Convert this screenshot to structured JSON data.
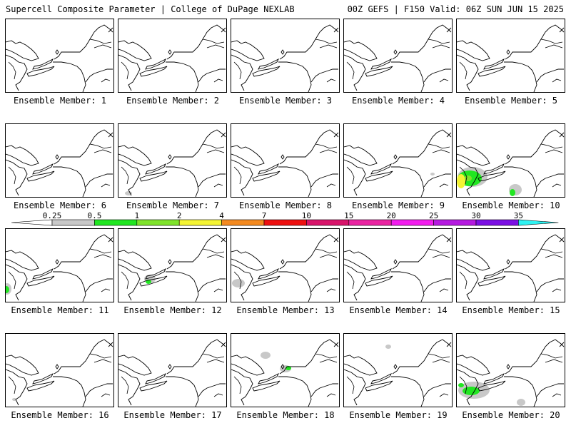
{
  "header": {
    "left": "Supercell Composite Parameter | College of DuPage NEXLAB",
    "right": "00Z GEFS | F150 Valid: 06Z SUN JUN 15 2025"
  },
  "member_label_prefix": "Ensemble Member:",
  "members": [
    {
      "label": "Ensemble Member: 1",
      "blobs": []
    },
    {
      "label": "Ensemble Member: 2",
      "blobs": []
    },
    {
      "label": "Ensemble Member: 3",
      "blobs": []
    },
    {
      "label": "Ensemble Member: 4",
      "blobs": []
    },
    {
      "label": "Ensemble Member: 5",
      "blobs": []
    },
    {
      "label": "Ensemble Member: 6",
      "blobs": []
    },
    {
      "label": "Ensemble Member: 7",
      "blobs": [
        {
          "cls": "0.25",
          "x": 14,
          "y": 97,
          "rx": 5,
          "ry": 3
        }
      ]
    },
    {
      "label": "Ensemble Member: 8",
      "blobs": []
    },
    {
      "label": "Ensemble Member: 9",
      "blobs": [
        {
          "cls": "0.25",
          "x": 124,
          "y": 70,
          "rx": 3,
          "ry": 2
        }
      ]
    },
    {
      "label": "Ensemble Member: 10",
      "blobs": [
        {
          "cls": "0.25",
          "x": 22,
          "y": 74,
          "rx": 21,
          "ry": 14
        },
        {
          "cls": "0.5",
          "x": 18,
          "y": 76,
          "rx": 17,
          "ry": 11
        },
        {
          "cls": "2",
          "x": 6,
          "y": 80,
          "rx": 6,
          "ry": 10
        },
        {
          "cls": "1",
          "x": 16,
          "y": 76,
          "rx": 5,
          "ry": 4
        },
        {
          "cls": "0.25",
          "x": 82,
          "y": 92,
          "rx": 9,
          "ry": 8
        },
        {
          "cls": "0.5",
          "x": 78,
          "y": 96,
          "rx": 4,
          "ry": 5
        }
      ]
    },
    {
      "label": "Ensemble Member: 11",
      "blobs": [
        {
          "cls": "0.25",
          "x": 2,
          "y": 84,
          "rx": 6,
          "ry": 8
        },
        {
          "cls": "0.5",
          "x": 1,
          "y": 85,
          "rx": 4,
          "ry": 5
        }
      ]
    },
    {
      "label": "Ensemble Member: 12",
      "blobs": [
        {
          "cls": "0.25",
          "x": 44,
          "y": 70,
          "rx": 8,
          "ry": 6
        },
        {
          "cls": "0.5",
          "x": 42,
          "y": 74,
          "rx": 4,
          "ry": 3
        }
      ]
    },
    {
      "label": "Ensemble Member: 13",
      "blobs": [
        {
          "cls": "0.25",
          "x": 10,
          "y": 76,
          "rx": 9,
          "ry": 6
        }
      ]
    },
    {
      "label": "Ensemble Member: 14",
      "blobs": []
    },
    {
      "label": "Ensemble Member: 15",
      "blobs": []
    },
    {
      "label": "Ensemble Member: 16",
      "blobs": [
        {
          "cls": "0.25",
          "x": 12,
          "y": 92,
          "rx": 3,
          "ry": 2
        }
      ]
    },
    {
      "label": "Ensemble Member: 17",
      "blobs": []
    },
    {
      "label": "Ensemble Member: 18",
      "blobs": [
        {
          "cls": "0.25",
          "x": 48,
          "y": 30,
          "rx": 7,
          "ry": 5
        },
        {
          "cls": "0.25",
          "x": 76,
          "y": 49,
          "rx": 8,
          "ry": 5
        },
        {
          "cls": "0.5",
          "x": 80,
          "y": 48,
          "rx": 4,
          "ry": 3
        }
      ]
    },
    {
      "label": "Ensemble Member: 19",
      "blobs": [
        {
          "cls": "0.25",
          "x": 62,
          "y": 18,
          "rx": 4,
          "ry": 3
        }
      ]
    },
    {
      "label": "Ensemble Member: 20",
      "blobs": [
        {
          "cls": "0.25",
          "x": 24,
          "y": 79,
          "rx": 22,
          "ry": 12
        },
        {
          "cls": "0.5",
          "x": 20,
          "y": 80,
          "rx": 12,
          "ry": 6
        },
        {
          "cls": "0.5",
          "x": 6,
          "y": 72,
          "rx": 4,
          "ry": 3
        },
        {
          "cls": "0.25",
          "x": 90,
          "y": 96,
          "rx": 6,
          "ry": 5
        }
      ]
    }
  ],
  "colorbar": {
    "labels": [
      "0.25",
      "0.5",
      "1",
      "2",
      "4",
      "7",
      "10",
      "15",
      "20",
      "25",
      "30",
      "35"
    ],
    "colors": {
      "0.25": "#c8c8c8",
      "0.5": "#21e621",
      "1": "#7fe32b",
      "2": "#f4f433",
      "4": "#f48a20",
      "7": "#ee1111",
      "10": "#d8156b",
      "15": "#ea25a2",
      "20": "#f21dee",
      "25": "#b51ae0",
      "30": "#7b10e3",
      "35": "#b06ae0",
      "over": "#2ef2f2"
    }
  }
}
